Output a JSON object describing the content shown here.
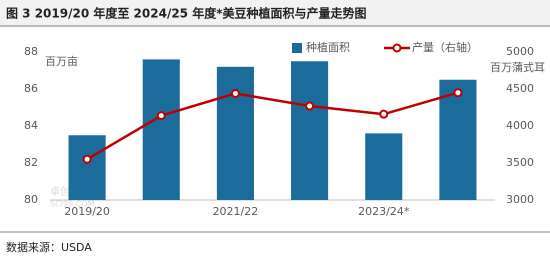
{
  "chart_data": {
    "type": "bar_line",
    "title": "图 3 2019/20 年度至 2024/25 年度*美豆种植面积与产量走势图",
    "y_label": "百万亩",
    "y2_label": "百万蒲式耳",
    "source": "数据来源：USDA",
    "watermark": [
      "卓创资讯",
      "SCI99.COM"
    ],
    "categories": [
      "2019/20",
      null,
      "2021/22",
      null,
      "2023/24*",
      null
    ],
    "series": [
      {
        "name": "种植面积",
        "type": "bar",
        "color": "#1b6c9a",
        "values": [
          83.5,
          87.6,
          87.2,
          87.5,
          83.6,
          86.5
        ]
      },
      {
        "name": "产量（右轴）",
        "type": "line",
        "axis": "y2",
        "color": "#c00000",
        "values": [
          3550,
          4140,
          4440,
          4270,
          4160,
          4450
        ]
      }
    ],
    "ylim": [
      80,
      88
    ],
    "yticks": [
      80,
      82,
      84,
      86,
      88
    ],
    "y2lim": [
      3000,
      5000
    ],
    "y2ticks": [
      3000,
      3500,
      4000,
      4500,
      5000
    ],
    "legend": "top-right",
    "grid": false
  }
}
